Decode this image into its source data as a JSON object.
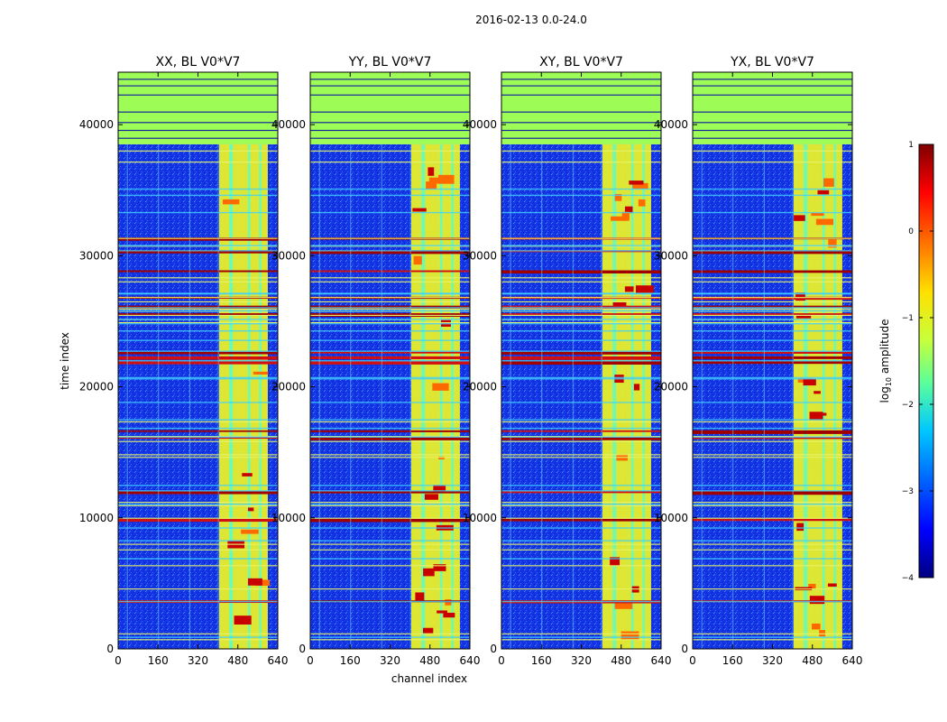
{
  "figure_title": "2016-02-13 0.0-24.0",
  "chart_data": [
    {
      "type": "heatmap",
      "title": "XX, BL V0*V7",
      "xlabel": "channel index",
      "ylabel": "time index",
      "xticks": [
        0,
        160,
        320,
        480,
        640
      ],
      "yticks": [
        0,
        10000,
        20000,
        30000,
        40000
      ],
      "xlim": [
        0,
        640
      ],
      "ylim": [
        0,
        44000
      ],
      "grid": false
    },
    {
      "type": "heatmap",
      "title": "YY, BL V0*V7",
      "xlabel": "channel index",
      "ylabel": "",
      "xticks": [
        0,
        160,
        320,
        480,
        640
      ],
      "yticks": [
        0,
        10000,
        20000,
        30000,
        40000
      ],
      "xlim": [
        0,
        640
      ],
      "ylim": [
        0,
        44000
      ],
      "grid": false
    },
    {
      "type": "heatmap",
      "title": "XY, BL V0*V7",
      "xlabel": "channel index",
      "ylabel": "",
      "xticks": [
        0,
        160,
        320,
        480,
        640
      ],
      "yticks": [
        0,
        10000,
        20000,
        30000,
        40000
      ],
      "xlim": [
        0,
        640
      ],
      "ylim": [
        0,
        44000
      ],
      "grid": false
    },
    {
      "type": "heatmap",
      "title": "YX, BL V0*V7",
      "xlabel": "channel index",
      "ylabel": "",
      "xticks": [
        0,
        160,
        320,
        480,
        640
      ],
      "yticks": [
        0,
        10000,
        20000,
        30000,
        40000
      ],
      "xlim": [
        0,
        640
      ],
      "ylim": [
        0,
        44000
      ],
      "grid": false
    }
  ],
  "labels": {
    "shared_xlabel": "channel index",
    "shared_ylabel": "time index"
  },
  "colorbar": {
    "label_prefix": "log",
    "label_sub": "10",
    "label_suffix": " amplitude",
    "ticks": [
      {
        "value": 1,
        "label": "1"
      },
      {
        "value": 0,
        "label": "0"
      },
      {
        "value": -1,
        "label": "−1"
      },
      {
        "value": -2,
        "label": "−2"
      },
      {
        "value": -3,
        "label": "−3"
      },
      {
        "value": -4,
        "label": "−4"
      }
    ],
    "range": [
      -4,
      1
    ],
    "colormap": [
      "#00007f",
      "#0000ff",
      "#007fff",
      "#00ffff",
      "#7fff7f",
      "#ffff00",
      "#ff7f00",
      "#ff0000",
      "#7f0000"
    ]
  },
  "colors": {
    "background_low": "#1a3adf",
    "flagged": "#9dfc55",
    "band": "#e8f02a",
    "hot": "#c80000"
  }
}
